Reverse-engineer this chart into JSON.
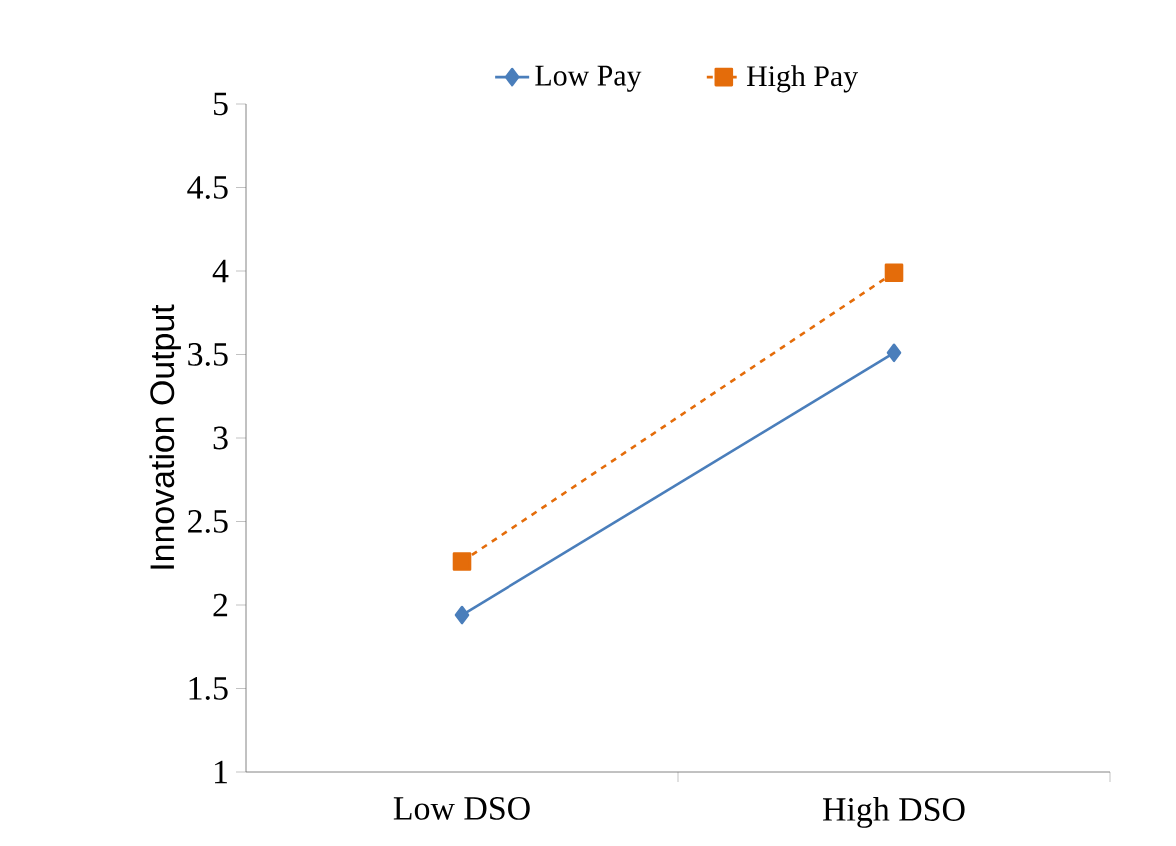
{
  "chart_data": {
    "type": "line",
    "ylabel": "Innovation Output",
    "categories": [
      "Low DSO",
      "High DSO"
    ],
    "series": [
      {
        "name": "Low Pay",
        "color": "#4a7ebb",
        "values": [
          1.94,
          3.51
        ],
        "marker": "diamond",
        "line_style": "solid"
      },
      {
        "name": "High Pay",
        "color": "#e46c0a",
        "values": [
          2.26,
          3.99
        ],
        "marker": "square",
        "line_style": "dashed"
      }
    ],
    "ylim": [
      1,
      5
    ],
    "yticks": [
      1,
      1.5,
      2,
      2.5,
      3,
      3.5,
      4,
      4.5,
      5
    ],
    "grid": false,
    "legend": "top"
  }
}
